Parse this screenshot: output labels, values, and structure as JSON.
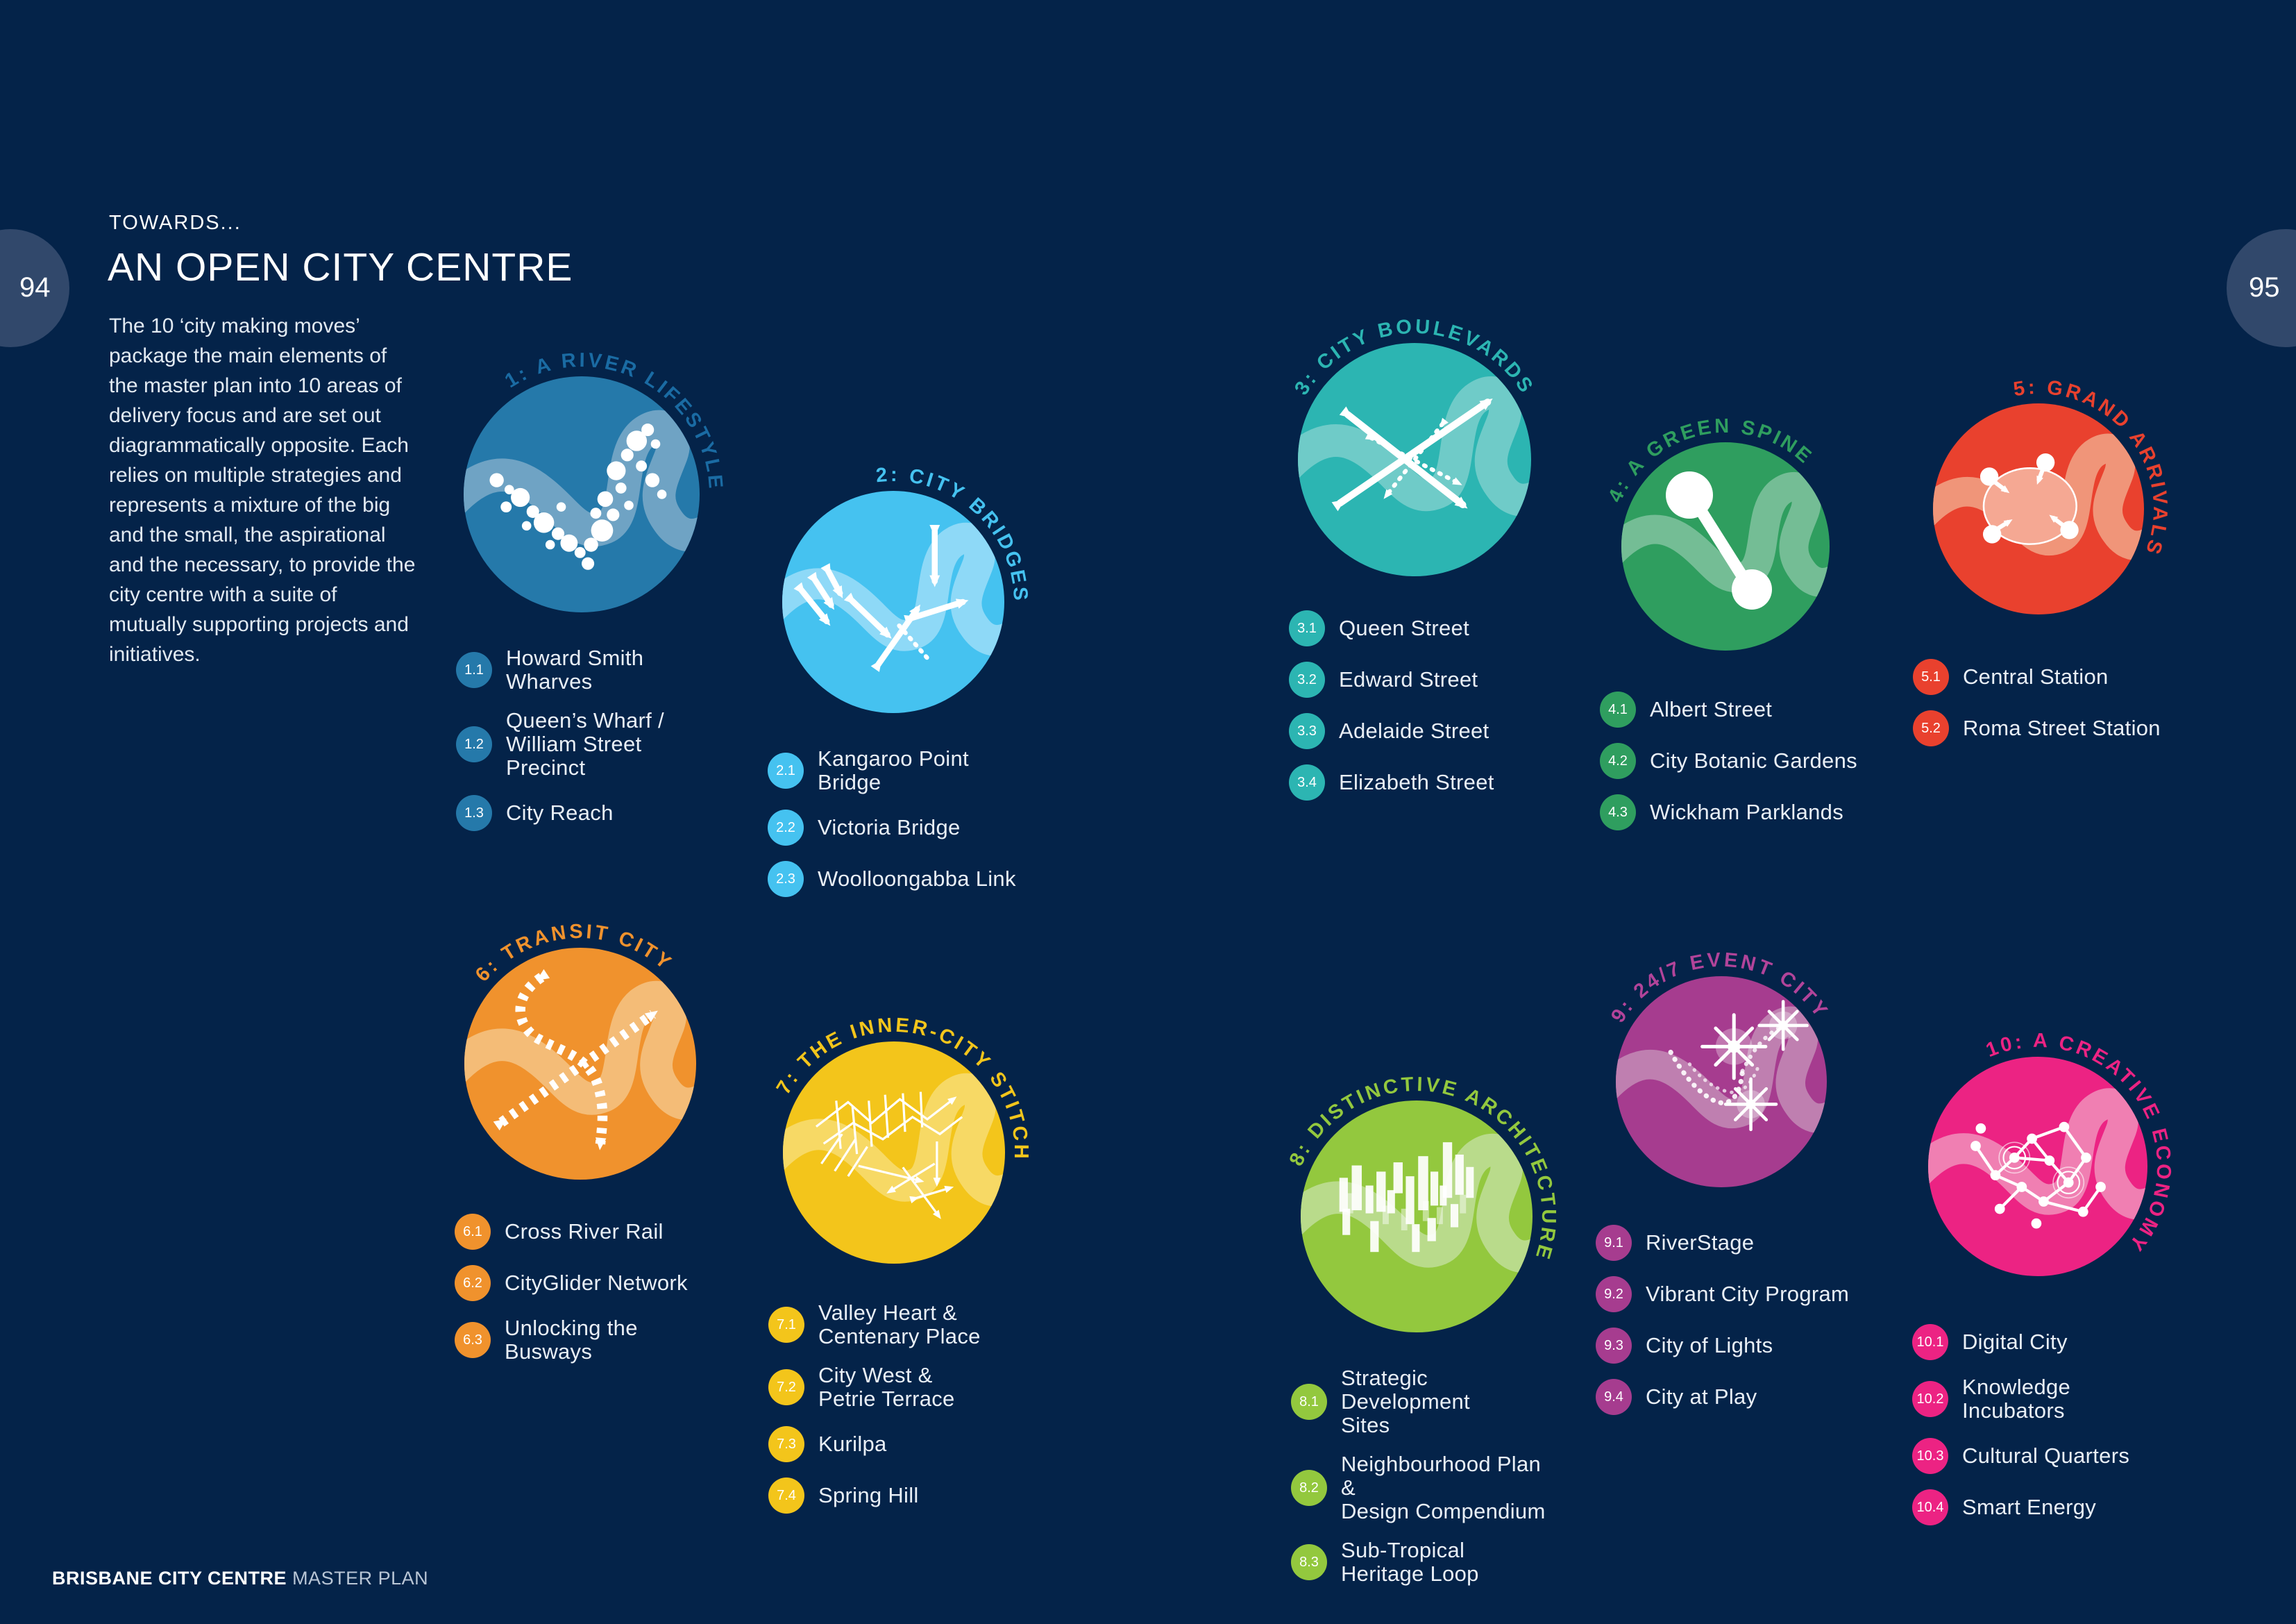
{
  "page": {
    "left_page_number": "94",
    "right_page_number": "95",
    "eyebrow": "TOWARDS...",
    "title": "AN OPEN CITY CENTRE",
    "intro": "The 10 ‘city making moves’ package the main elements of the master plan into 10 areas of delivery focus and are set out diagrammatically opposite. Each relies on multiple strategies and represents a mixture of the big and the small, the aspirational and the necessary, to provide the city centre with a suite of mutually supporting projects and initiatives.",
    "footer_bold": "BRISBANE CITY CENTRE",
    "footer_light": "MASTER PLAN"
  },
  "colors": {
    "background": "#042349",
    "page_tab": "#31486B"
  },
  "moves": [
    {
      "title": "1: A RIVER LIFESTYLE",
      "color": "#2579AA",
      "river_color": "#6FA3C4",
      "label_color": "#1A6BA3",
      "motif": "river-bubbles-motif",
      "items": [
        {
          "num": "1.1",
          "label": "Howard Smith Wharves"
        },
        {
          "num": "1.2",
          "label": "Queen’s Wharf /\nWilliam Street Precinct"
        },
        {
          "num": "1.3",
          "label": "City Reach"
        }
      ]
    },
    {
      "title": "2: CITY BRIDGES",
      "color": "#45C2F0",
      "river_color": "#8ED9F7",
      "label_color": "#45C2F0",
      "motif": "bridges-arrows-motif",
      "items": [
        {
          "num": "2.1",
          "label": "Kangaroo Point Bridge"
        },
        {
          "num": "2.2",
          "label": "Victoria Bridge"
        },
        {
          "num": "2.3",
          "label": "Woolloongabba Link"
        }
      ]
    },
    {
      "title": "3: CITY BOULEVARDS",
      "color": "#2CB5B2",
      "river_color": "#6FCBC8",
      "label_color": "#2CB5B2",
      "motif": "crossed-boulevards-motif",
      "items": [
        {
          "num": "3.1",
          "label": "Queen Street"
        },
        {
          "num": "3.2",
          "label": "Edward Street"
        },
        {
          "num": "3.3",
          "label": "Adelaide Street"
        },
        {
          "num": "3.4",
          "label": "Elizabeth Street"
        }
      ]
    },
    {
      "title": "4: A GREEN SPINE",
      "color": "#2F9E5F",
      "river_color": "#74BD95",
      "label_color": "#2F9E5F",
      "motif": "green-spine-motif",
      "items": [
        {
          "num": "4.1",
          "label": "Albert Street"
        },
        {
          "num": "4.2",
          "label": "City Botanic Gardens"
        },
        {
          "num": "4.3",
          "label": "Wickham Parklands"
        }
      ]
    },
    {
      "title": "5: GRAND ARRIVALS",
      "color": "#E9412E",
      "river_color": "#F09579",
      "label_color": "#E9412E",
      "motif": "arrivals-hub-motif",
      "items": [
        {
          "num": "5.1",
          "label": "Central Station"
        },
        {
          "num": "5.2",
          "label": "Roma Street Station"
        }
      ]
    },
    {
      "title": "6: TRANSIT CITY",
      "color": "#F0922D",
      "river_color": "#F4BC77",
      "label_color": "#F0922D",
      "motif": "transit-rail-motif",
      "items": [
        {
          "num": "6.1",
          "label": "Cross River Rail"
        },
        {
          "num": "6.2",
          "label": "CityGlider Network"
        },
        {
          "num": "6.3",
          "label": "Unlocking the Busways"
        }
      ]
    },
    {
      "title": "7: THE INNER-CITY STITCH",
      "color": "#F3C51B",
      "river_color": "#F7D965",
      "label_color": "#F3C51B",
      "motif": "stitch-network-motif",
      "items": [
        {
          "num": "7.1",
          "label": "Valley Heart &\nCentenary Place"
        },
        {
          "num": "7.2",
          "label": "City West &\nPetrie Terrace"
        },
        {
          "num": "7.3",
          "label": "Kurilpa"
        },
        {
          "num": "7.4",
          "label": "Spring Hill"
        }
      ]
    },
    {
      "title": "8: DISTINCTIVE ARCHITECTURE",
      "color": "#93C83E",
      "river_color": "#B9DB8B",
      "label_color": "#93C83E",
      "motif": "architecture-towers-motif",
      "items": [
        {
          "num": "8.1",
          "label": "Strategic Development\nSites"
        },
        {
          "num": "8.2",
          "label": "Neighbourhood Plan &\nDesign Compendium"
        },
        {
          "num": "8.3",
          "label": "Sub-Tropical\nHeritage Loop"
        }
      ]
    },
    {
      "title": "9: 24/7 EVENT CITY",
      "color": "#A63C8F",
      "river_color": "#BF7FB0",
      "label_color": "#B2449A",
      "motif": "event-sparkles-motif",
      "items": [
        {
          "num": "9.1",
          "label": "RiverStage"
        },
        {
          "num": "9.2",
          "label": "Vibrant City Program"
        },
        {
          "num": "9.3",
          "label": "City of Lights"
        },
        {
          "num": "9.4",
          "label": "City at Play"
        }
      ]
    },
    {
      "title": "10: A CREATIVE ECONOMY",
      "color": "#EC2383",
      "river_color": "#F07FB2",
      "label_color": "#EC2383",
      "motif": "creative-network-motif",
      "items": [
        {
          "num": "10.1",
          "label": "Digital City"
        },
        {
          "num": "10.2",
          "label": "Knowledge Incubators"
        },
        {
          "num": "10.3",
          "label": "Cultural Quarters"
        },
        {
          "num": "10.4",
          "label": "Smart Energy"
        }
      ]
    }
  ]
}
